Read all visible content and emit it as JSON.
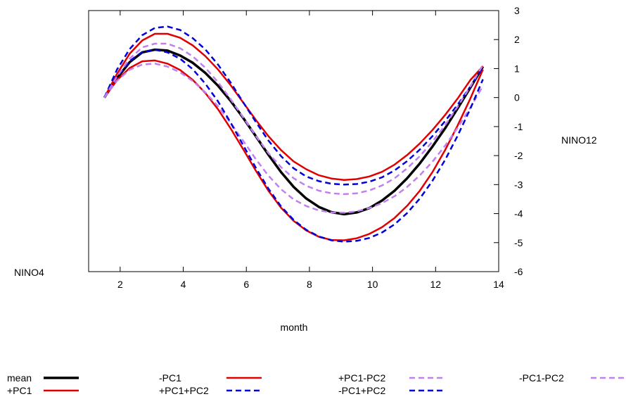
{
  "chart_data": {
    "type": "line",
    "xlabel": "month",
    "left_axis_label": "NINO4",
    "right_axis_label": "NINO12",
    "xlim": [
      1,
      14
    ],
    "ylim": [
      -6,
      3
    ],
    "x_ticks": [
      2,
      4,
      6,
      8,
      10,
      12,
      14
    ],
    "y_ticks": [
      3,
      2,
      1,
      0,
      -1,
      -2,
      -3,
      -4,
      -5,
      -6
    ],
    "x_tick_labels": [
      "2",
      "4",
      "6",
      "8",
      "10",
      "12",
      "14"
    ],
    "y_tick_labels": [
      "3",
      "2",
      "1",
      "0",
      "-1",
      "-2",
      "-3",
      "-4",
      "-5",
      "-6"
    ],
    "y_axis_side": "right",
    "grid": false,
    "legend_placement": "bottom",
    "x": [
      1.5,
      1.9,
      2.3,
      2.7,
      3.1,
      3.5,
      3.9,
      4.3,
      4.7,
      5.1,
      5.5,
      5.9,
      6.3,
      6.7,
      7.1,
      7.5,
      7.9,
      8.3,
      8.7,
      9.1,
      9.5,
      9.9,
      10.3,
      10.7,
      11.1,
      11.5,
      11.9,
      12.3,
      12.7,
      13.1,
      13.5
    ],
    "series": [
      {
        "name": "mean",
        "color": "#000000",
        "dash": "solid",
        "width": 3.5,
        "values": [
          0.0,
          0.67,
          1.22,
          1.56,
          1.65,
          1.62,
          1.45,
          1.2,
          0.85,
          0.41,
          -0.11,
          -0.7,
          -1.33,
          -1.97,
          -2.57,
          -3.08,
          -3.48,
          -3.77,
          -3.95,
          -4.02,
          -3.96,
          -3.81,
          -3.55,
          -3.21,
          -2.78,
          -2.27,
          -1.69,
          -1.06,
          -0.37,
          0.34,
          1.07
        ]
      },
      {
        "name": "+PC1",
        "color": "#e00000",
        "dash": "solid",
        "width": 2.5,
        "values": [
          0.0,
          0.82,
          1.51,
          1.97,
          2.2,
          2.2,
          2.06,
          1.8,
          1.43,
          0.97,
          0.43,
          -0.17,
          -0.77,
          -1.33,
          -1.81,
          -2.2,
          -2.47,
          -2.68,
          -2.79,
          -2.84,
          -2.81,
          -2.72,
          -2.56,
          -2.31,
          -1.98,
          -1.58,
          -1.12,
          -0.6,
          -0.03,
          0.6,
          1.08
        ]
      },
      {
        "name": "-PC1",
        "color": "#e00000",
        "dash": "solid",
        "width": 2.5,
        "values": [
          0.0,
          0.6,
          1.02,
          1.25,
          1.28,
          1.17,
          0.95,
          0.61,
          0.16,
          -0.4,
          -1.06,
          -1.78,
          -2.52,
          -3.21,
          -3.8,
          -4.25,
          -4.58,
          -4.8,
          -4.91,
          -4.92,
          -4.85,
          -4.7,
          -4.47,
          -4.15,
          -3.73,
          -3.21,
          -2.57,
          -1.81,
          -0.96,
          -0.04,
          0.97
        ]
      },
      {
        "name": "+PC1+PC2",
        "color": "#0000d8",
        "dash": "dashed",
        "width": 2.5,
        "values": [
          0.0,
          0.97,
          1.67,
          2.15,
          2.4,
          2.45,
          2.33,
          2.05,
          1.66,
          1.14,
          0.52,
          -0.16,
          -0.84,
          -1.48,
          -2.02,
          -2.44,
          -2.72,
          -2.88,
          -2.97,
          -3.0,
          -2.98,
          -2.9,
          -2.75,
          -2.51,
          -2.19,
          -1.79,
          -1.33,
          -0.81,
          -0.24,
          0.38,
          1.05
        ]
      },
      {
        "name": "+PC1-PC2",
        "color": "#c080f0",
        "dash": "dashed",
        "width": 2.5,
        "values": [
          0.0,
          0.58,
          0.96,
          1.14,
          1.17,
          1.07,
          0.87,
          0.57,
          0.18,
          -0.3,
          -0.87,
          -1.49,
          -2.12,
          -2.69,
          -3.16,
          -3.51,
          -3.74,
          -3.89,
          -3.96,
          -3.97,
          -3.92,
          -3.81,
          -3.64,
          -3.4,
          -3.08,
          -2.68,
          -2.21,
          -1.66,
          -1.04,
          -0.35,
          0.4
        ]
      },
      {
        "name": "-PC1+PC2",
        "color": "#0000d8",
        "dash": "dashed",
        "width": 2.5,
        "values": [
          0.0,
          0.72,
          1.26,
          1.57,
          1.65,
          1.56,
          1.34,
          0.98,
          0.48,
          -0.13,
          -0.86,
          -1.64,
          -2.42,
          -3.14,
          -3.75,
          -4.22,
          -4.56,
          -4.79,
          -4.92,
          -4.97,
          -4.94,
          -4.84,
          -4.65,
          -4.37,
          -3.98,
          -3.48,
          -2.87,
          -2.15,
          -1.31,
          -0.39,
          0.63
        ]
      },
      {
        "name": "-PC1-PC2",
        "color": "#c080f0",
        "dash": "dashed",
        "width": 2.5,
        "values": [
          0.0,
          0.73,
          1.34,
          1.73,
          1.86,
          1.86,
          1.7,
          1.42,
          1.03,
          0.53,
          -0.05,
          -0.68,
          -1.32,
          -1.91,
          -2.4,
          -2.78,
          -3.04,
          -3.21,
          -3.3,
          -3.33,
          -3.3,
          -3.2,
          -3.03,
          -2.78,
          -2.44,
          -2.02,
          -1.52,
          -0.95,
          -0.31,
          0.38,
          1.13
        ]
      }
    ]
  },
  "legend": [
    {
      "label": "mean",
      "color": "#000000",
      "dash": "solid",
      "width": 3.5
    },
    {
      "label": "+PC1",
      "color": "#e00000",
      "dash": "solid",
      "width": 2.5
    },
    {
      "label": "-PC1",
      "color": "#e00000",
      "dash": "solid",
      "width": 2.5
    },
    {
      "label": "+PC1+PC2",
      "color": "#0000d8",
      "dash": "dashed",
      "width": 2.5
    },
    {
      "label": "+PC1-PC2",
      "color": "#c080f0",
      "dash": "dashed",
      "width": 2.5
    },
    {
      "label": "-PC1+PC2",
      "color": "#0000d8",
      "dash": "dashed",
      "width": 2.5
    },
    {
      "label": "-PC1-PC2",
      "color": "#c080f0",
      "dash": "dashed",
      "width": 2.5
    }
  ]
}
